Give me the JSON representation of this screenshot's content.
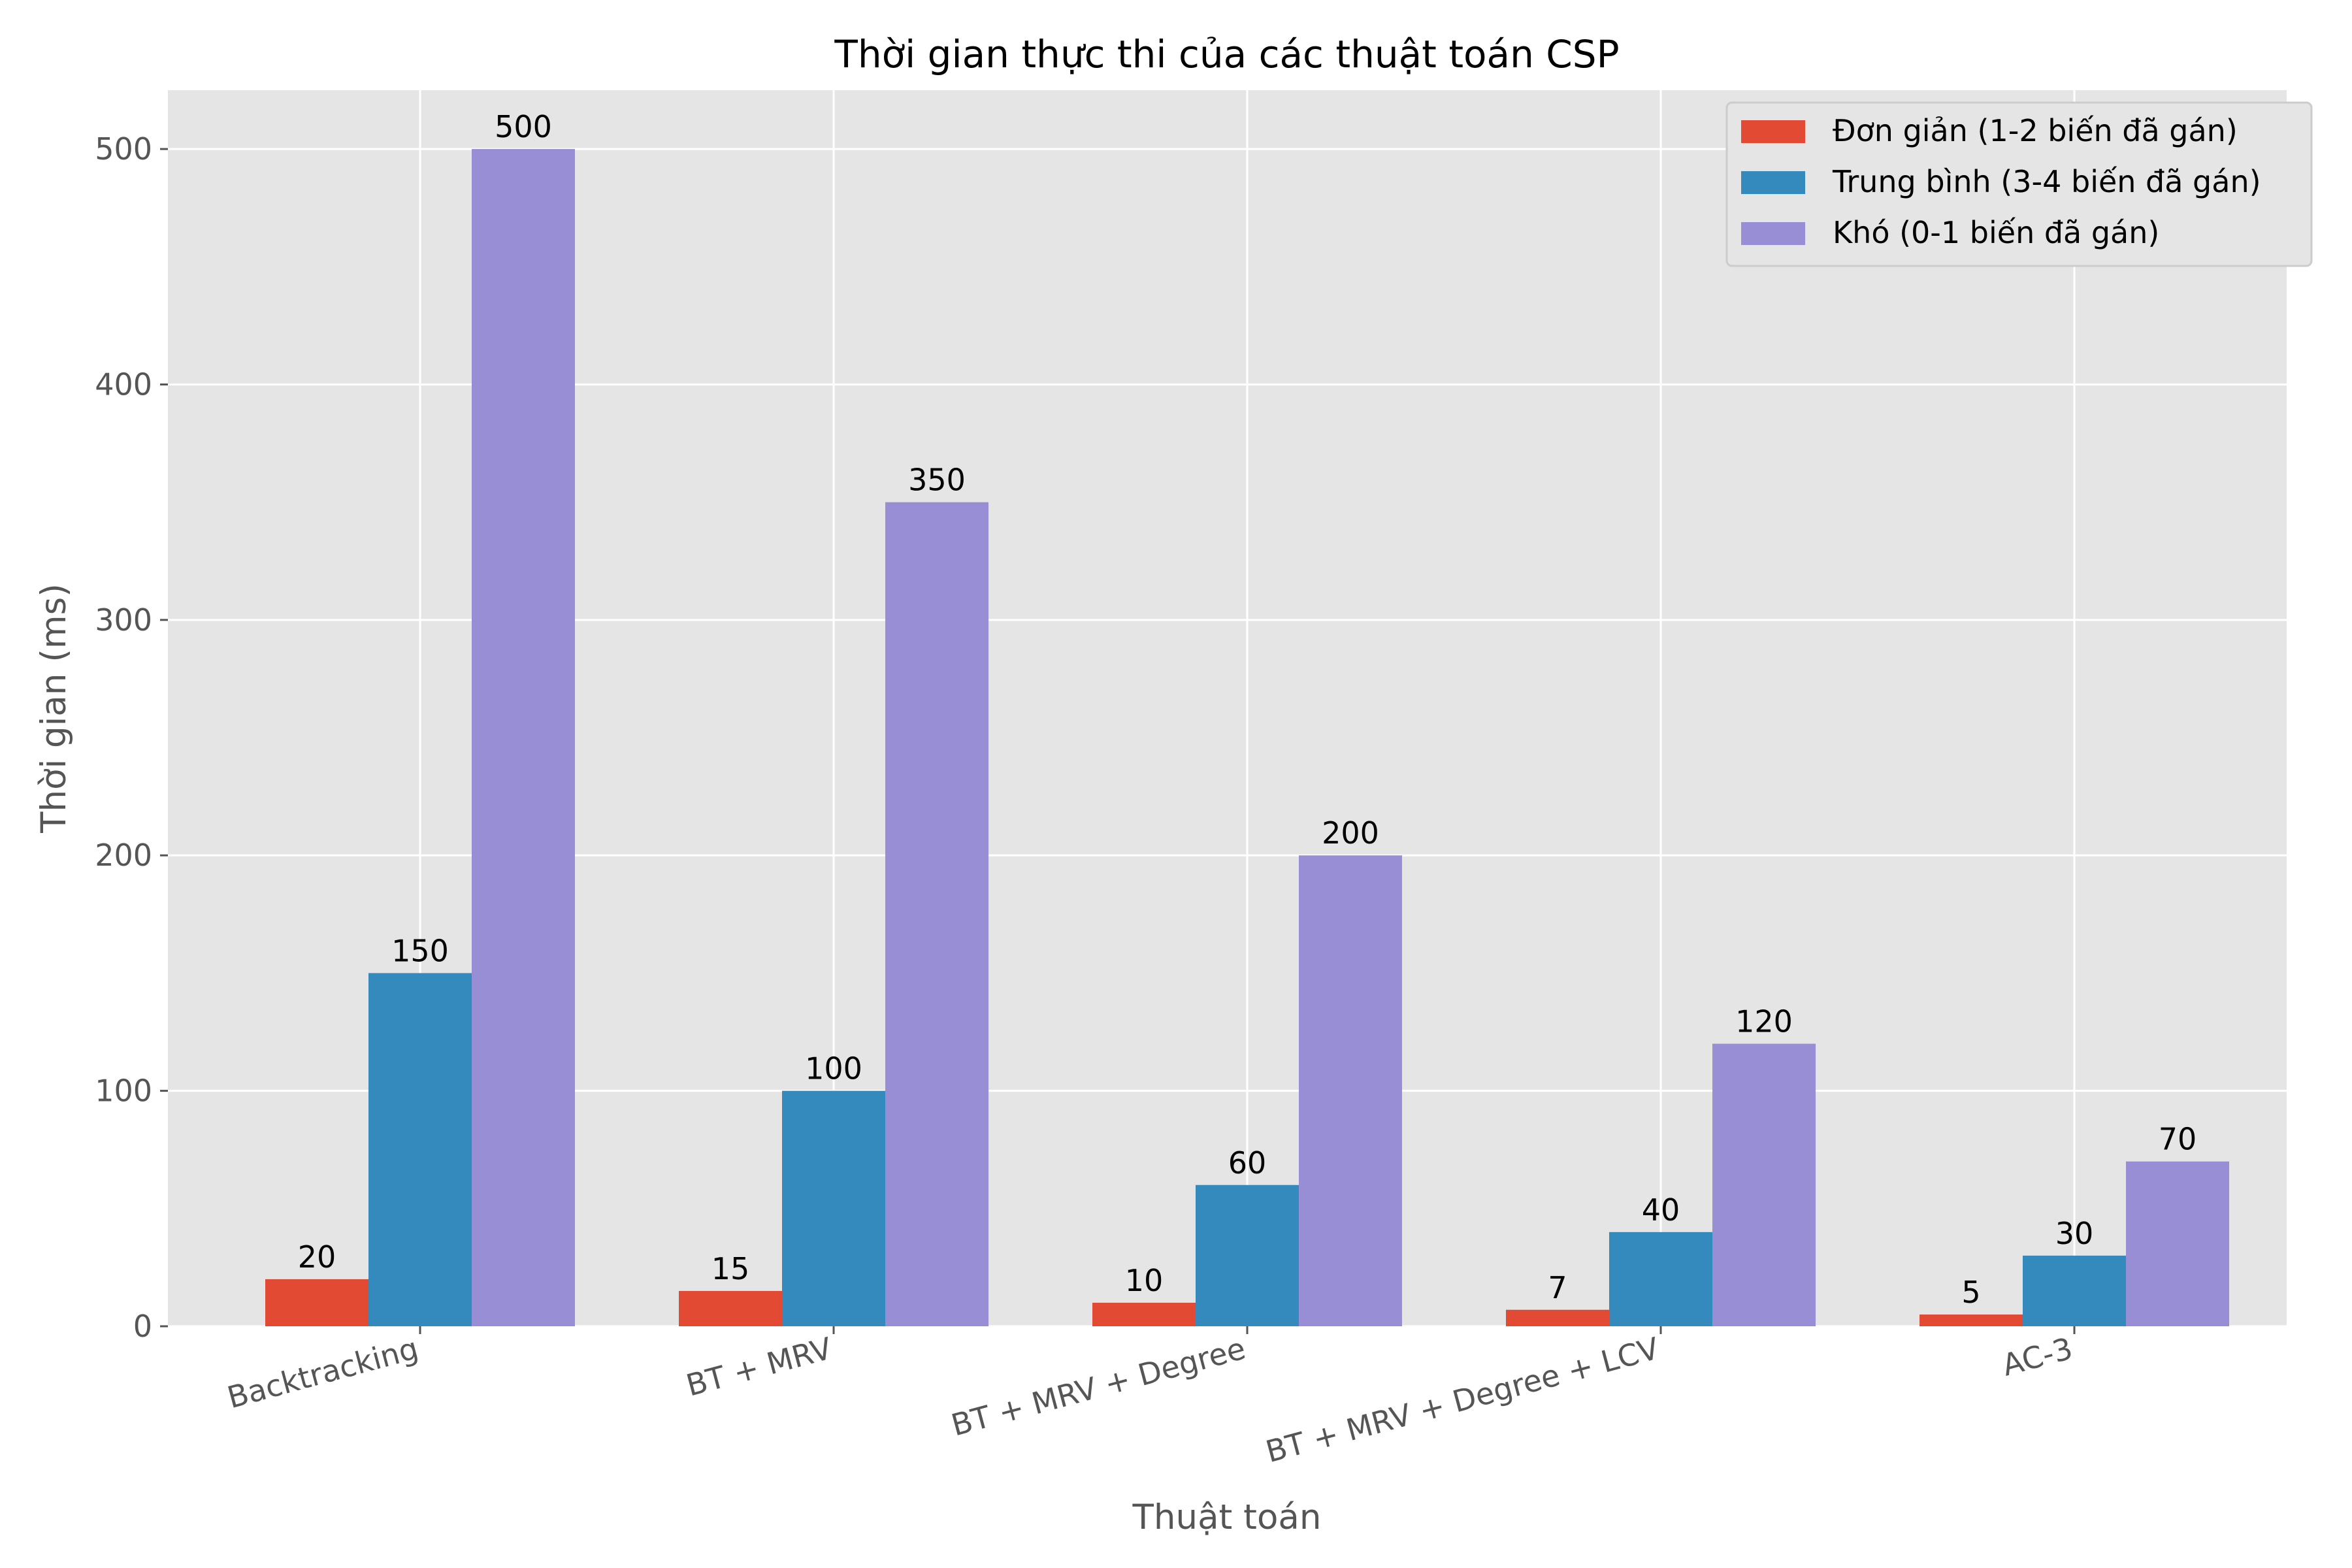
{
  "chart_data": {
    "type": "bar",
    "title": "Thời gian thực thi của các thuật toán CSP",
    "xlabel": "Thuật toán",
    "ylabel": "Thời gian (ms)",
    "categories": [
      "Backtracking",
      "BT + MRV",
      "BT + MRV + Degree",
      "BT + MRV + Degree + LCV",
      "AC-3"
    ],
    "series": [
      {
        "name": "Đơn giản (1-2 biến đã gán)",
        "color": "#E24A33",
        "values": [
          20,
          15,
          10,
          7,
          5
        ]
      },
      {
        "name": "Trung bình (3-4 biến đã gán)",
        "color": "#348ABD",
        "values": [
          150,
          100,
          60,
          40,
          30
        ]
      },
      {
        "name": "Khó (0-1 biến đã gán)",
        "color": "#988ED5",
        "values": [
          500,
          350,
          200,
          120,
          70
        ]
      }
    ],
    "ylim": [
      0,
      525
    ],
    "yticks": [
      0,
      100,
      200,
      300,
      400,
      500
    ],
    "grid": true,
    "legend_position": "top-right",
    "background_color": "#E5E5E5"
  }
}
